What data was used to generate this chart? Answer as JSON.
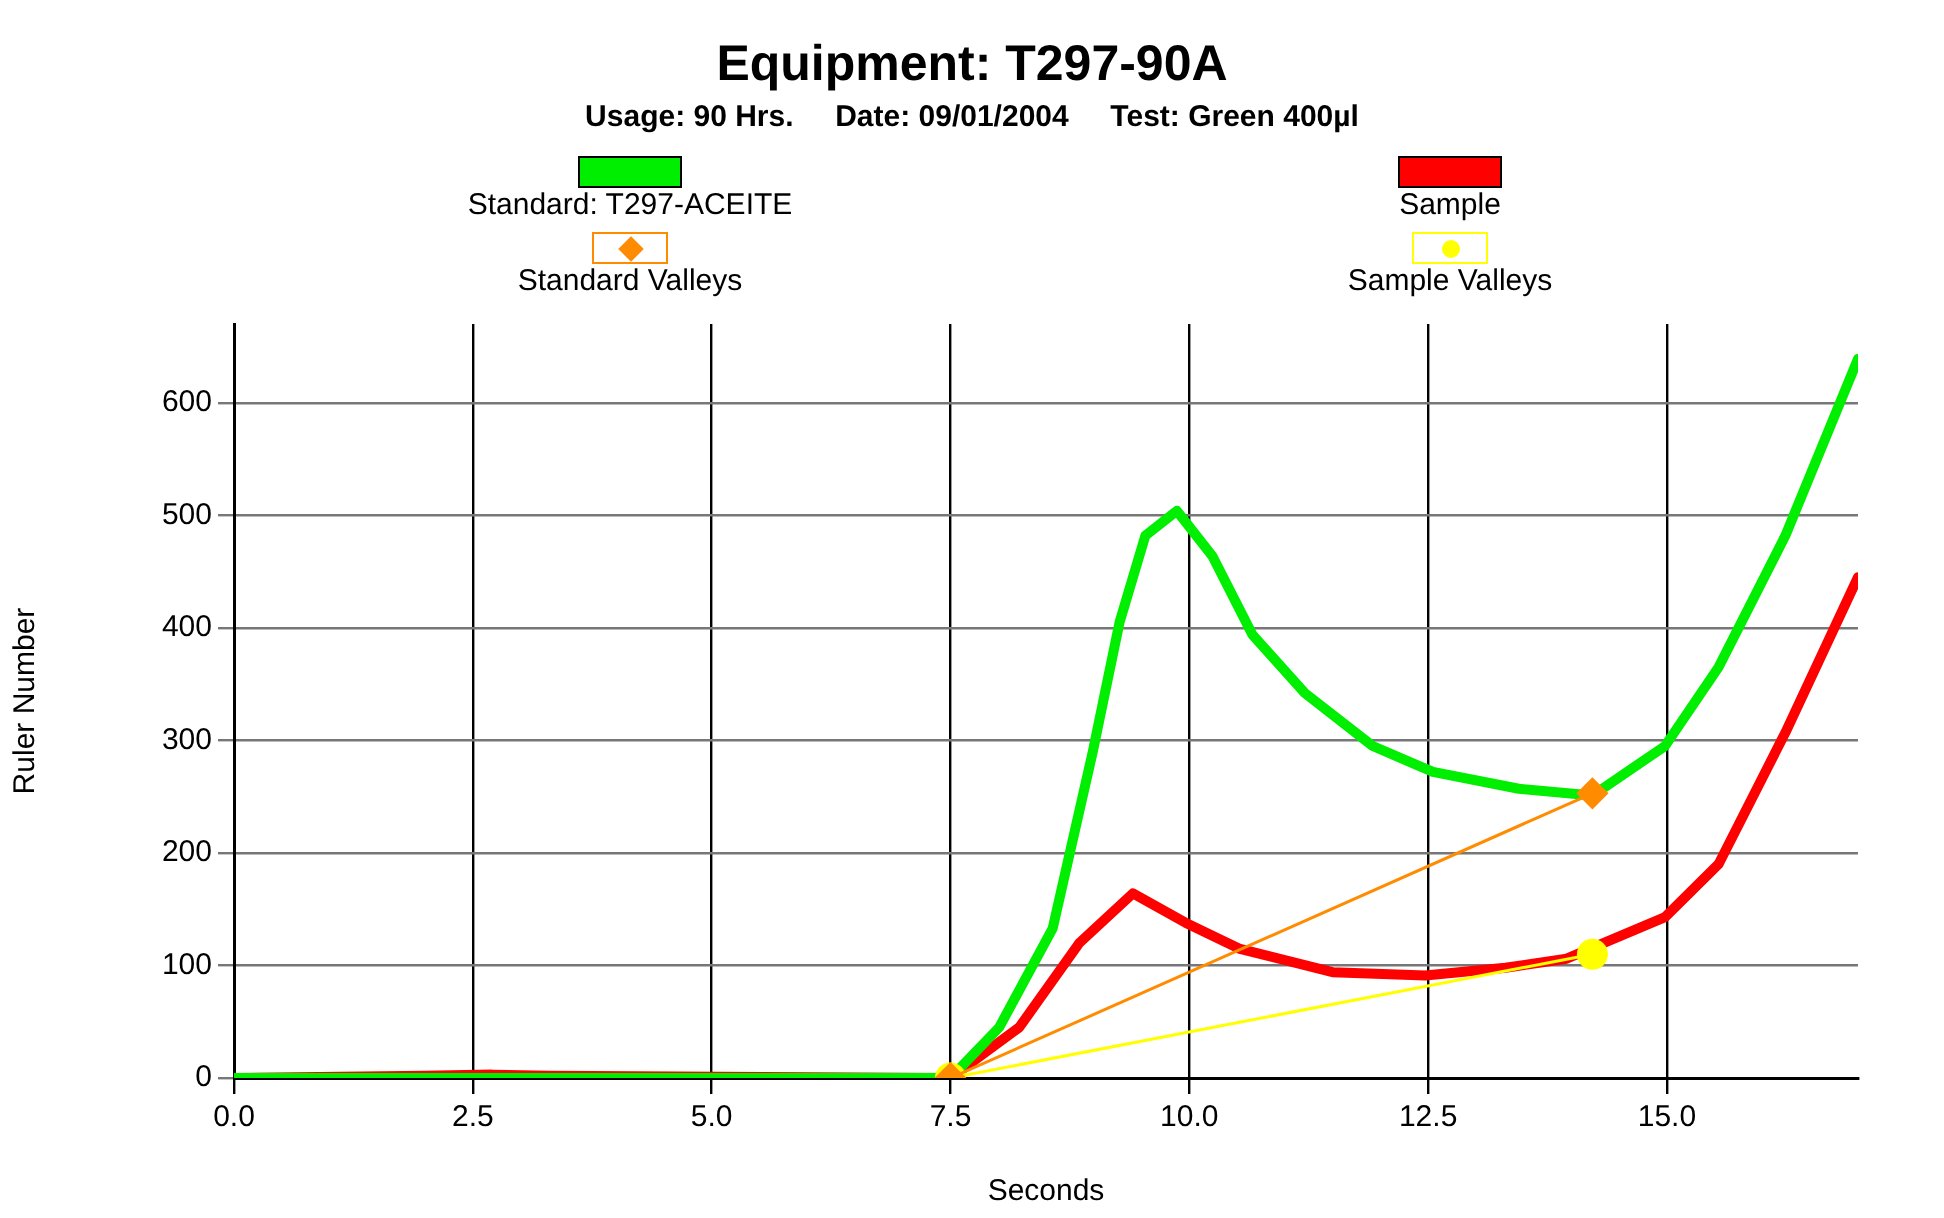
{
  "chart_data": {
    "type": "line",
    "title": "Equipment: T297-90A",
    "subtitle": "Usage: 90 Hrs.     Date: 09/01/2004     Test: Green 400µl",
    "xlabel": "Seconds",
    "ylabel": "Ruler Number",
    "xlim": [
      0,
      17
    ],
    "ylim": [
      0,
      670
    ],
    "xticks": [
      {
        "value": 0,
        "label": "0.0"
      },
      {
        "value": 2.5,
        "label": "2.5"
      },
      {
        "value": 5,
        "label": "5.0"
      },
      {
        "value": 7.5,
        "label": "7.5"
      },
      {
        "value": 10,
        "label": "10.0"
      },
      {
        "value": 12.5,
        "label": "12.5"
      },
      {
        "value": 15,
        "label": "15.0"
      }
    ],
    "yticks": [
      0,
      100,
      200,
      300,
      400,
      500,
      600
    ],
    "grid": true,
    "legend": "top",
    "line_style": "solid",
    "series": [
      {
        "name": "Standard: T297-ACEITE",
        "color": "#00ee00",
        "marker": "none",
        "x": [
          0,
          7.5,
          8.01,
          8.57,
          8.99,
          9.27,
          9.54,
          9.87,
          10.24,
          10.66,
          11.21,
          11.92,
          12.55,
          13.45,
          14.22,
          14.98,
          15.54,
          16.24,
          17.0
        ],
        "values": [
          0,
          0,
          45,
          133,
          290,
          405,
          482,
          504,
          464,
          394,
          342,
          295,
          272,
          257,
          251,
          295,
          365,
          482,
          639
        ]
      },
      {
        "name": "Sample",
        "color": "#ff0000",
        "marker": "none",
        "x": [
          0,
          2.0,
          2.7,
          3.3,
          7.5,
          8.22,
          8.85,
          9.41,
          9.96,
          10.52,
          11.5,
          12.47,
          13.31,
          13.95,
          14.98,
          15.54,
          16.24,
          17.0
        ],
        "values": [
          0,
          2,
          3,
          2,
          0,
          45,
          120,
          164,
          138,
          115,
          94,
          91,
          98,
          106,
          143,
          190,
          307,
          445
        ]
      },
      {
        "name": "Standard Valleys",
        "color": "#ff8c00",
        "marker": "diamond",
        "x": [
          7.5,
          14.22
        ],
        "values": [
          0,
          253
        ]
      },
      {
        "name": "Sample Valleys",
        "color": "#ffff00",
        "marker": "circle",
        "x": [
          7.5,
          14.22
        ],
        "values": [
          0,
          110
        ]
      }
    ]
  }
}
